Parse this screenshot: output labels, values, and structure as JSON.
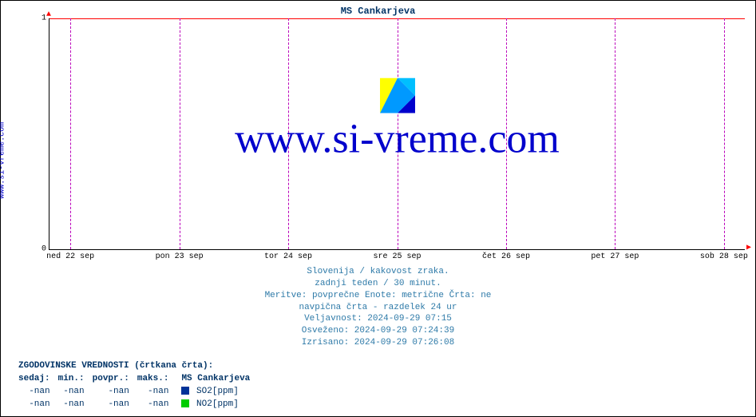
{
  "chart": {
    "type": "line",
    "title": "MS Cankarjeva",
    "title_color": "#003366",
    "title_fontsize": 12,
    "vlabel": "www.si-vreme.com",
    "vlabel_color": "#0000cc",
    "background_color": "#ffffff",
    "axis_color": "#000000",
    "hgrid_color": "#ff0000",
    "vgrid_color": "#bb00bb",
    "arrow_color": "#ff0000",
    "ylim": [
      0,
      1
    ],
    "yticks": [
      0,
      1
    ],
    "xticks": [
      "ned 22 sep",
      "pon 23 sep",
      "tor 24 sep",
      "sre 25 sep",
      "čet 26 sep",
      "pet 27 sep",
      "sob 28 sep"
    ],
    "watermark_text": "www.si-vreme.com",
    "watermark_color": "#0000cc",
    "watermark_icon_colors": {
      "tl": "#ffff00",
      "tr": "#00bfff",
      "bl": "#0099ff",
      "br": "#0000cc"
    }
  },
  "caption": {
    "color": "#2e7aa8",
    "lines": [
      "Slovenija / kakovost zraka.",
      "zadnji teden / 30 minut.",
      "Meritve: povprečne  Enote: metrične  Črta: ne",
      "navpična črta - razdelek 24 ur",
      "Veljavnost: 2024-09-29 07:15",
      "Osveženo: 2024-09-29 07:24:39",
      "Izrisano: 2024-09-29 07:26:08"
    ]
  },
  "legend": {
    "header": "ZGODOVINSKE VREDNOSTI (črtkana črta):",
    "columns": [
      "sedaj:",
      "min.:",
      "povpr.:",
      "maks.:"
    ],
    "series_title": "MS Cankarjeva",
    "rows": [
      {
        "sedaj": "-nan",
        "min": "-nan",
        "povpr": "-nan",
        "maks": "-nan",
        "swatch": "#003399",
        "label": "SO2[ppm]"
      },
      {
        "sedaj": "-nan",
        "min": "-nan",
        "povpr": "-nan",
        "maks": "-nan",
        "swatch": "#00cc00",
        "label": "NO2[ppm]"
      }
    ]
  }
}
